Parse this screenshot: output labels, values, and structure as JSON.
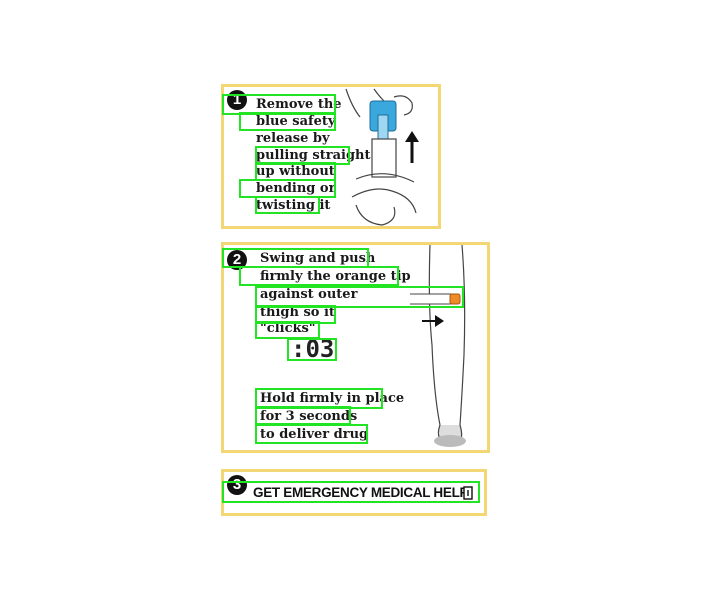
{
  "steps": [
    {
      "number": "1",
      "lines": [
        "Remove the",
        "blue safety",
        "release by",
        "pulling straight",
        "up without",
        "bending  or",
        "twisting it"
      ]
    },
    {
      "number": "2",
      "lines": [
        "Swing and push",
        "firmly the orange tip",
        "against outer",
        "thigh so it",
        "\"clicks\""
      ],
      "timer": ":03",
      "hold_lines": [
        "Hold firmly in place",
        "for 3 seconds",
        "to deliver drug"
      ]
    },
    {
      "number": "3",
      "help": "GET EMERGENCY MEDICAL HELP"
    }
  ],
  "colors": {
    "panel_border": "#f2d774",
    "highlight_box": "#22e422",
    "safety_release_blue": "#3aa7dd",
    "orange_tip": "#f08a24"
  },
  "icons": [
    "pen-injector-illustration",
    "up-arrow-icon",
    "leg-illustration",
    "right-arrow-icon",
    "ambulance-icon"
  ]
}
